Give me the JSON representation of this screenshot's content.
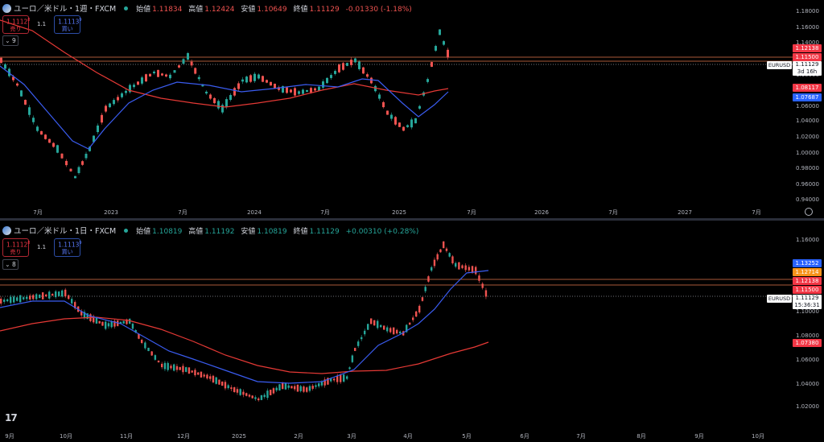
{
  "top_pane": {
    "symbol": "ユーロ／米ドル・1週・FXCM",
    "ohlc": {
      "open_label": "始値",
      "open": "1.11834",
      "high_label": "高値",
      "high": "1.12424",
      "low_label": "安値",
      "low": "1.10649",
      "close_label": "終値",
      "close": "1.11129",
      "change": "-0.01330 (-1.18%)"
    },
    "sell": {
      "price": "1.1112",
      "sup": "8",
      "label": "売り"
    },
    "spread": "1.1",
    "buy": {
      "price": "1.1113",
      "sup": "9",
      "label": "買い"
    },
    "indicator_count": "9",
    "y_ticks": [
      "1.18000",
      "1.16000",
      "1.14000",
      "1.10000",
      "1.04000",
      "1.02000",
      "1.00000",
      "0.98000",
      "0.96000",
      "0.94000"
    ],
    "y_ticks_extra": [
      "1.06000"
    ],
    "x_ticks": [
      "7月",
      "2023",
      "7月",
      "2024",
      "7月",
      "2025",
      "7月",
      "2026",
      "7月",
      "2027",
      "7月"
    ],
    "price_labels": [
      {
        "value": "1.12138",
        "color": "#f23645"
      },
      {
        "value": "1.11500",
        "color": "#f23645"
      },
      {
        "value": "1.08117",
        "color": "#f23645"
      },
      {
        "value": "1.07687",
        "color": "#2962ff"
      }
    ],
    "symbol_tag": "EURUSD",
    "last_price": "1.11129",
    "countdown": "3d 16h"
  },
  "bottom_pane": {
    "symbol": "ユーロ／米ドル・1日・FXCM",
    "ohlc": {
      "open_label": "始値",
      "open": "1.10819",
      "high_label": "高値",
      "high": "1.11192",
      "low_label": "安値",
      "low": "1.10819",
      "close_label": "終値",
      "close": "1.11129",
      "change": "+0.00310 (+0.28%)"
    },
    "sell": {
      "price": "1.1112",
      "sup": "8",
      "label": "売り"
    },
    "spread": "1.1",
    "buy": {
      "price": "1.1113",
      "sup": "9",
      "label": "買い"
    },
    "indicator_count": "8",
    "y_ticks": [
      "1.16000",
      "1.14000",
      "1.10000",
      "1.08000",
      "1.06000",
      "1.04000",
      "1.02000"
    ],
    "x_ticks": [
      "9月",
      "10月",
      "11月",
      "12月",
      "2025",
      "2月",
      "3月",
      "4月",
      "5月",
      "6月",
      "7月",
      "8月",
      "9月",
      "10月"
    ],
    "price_labels": [
      {
        "value": "1.13252",
        "color": "#2962ff"
      },
      {
        "value": "1.12714",
        "color": "#f7931a"
      },
      {
        "value": "1.12138",
        "color": "#f23645"
      },
      {
        "value": "1.11500",
        "color": "#f23645"
      },
      {
        "value": "1.07380",
        "color": "#f23645"
      }
    ],
    "symbol_tag": "EURUSD",
    "last_price": "1.11129",
    "countdown": "15:36:31"
  },
  "colors": {
    "up": "#26a69a",
    "down": "#ef5350",
    "ma_fast": "#3a5cf0",
    "ma_slow": "#e53935",
    "hline": "#e0744a"
  },
  "logo": "17"
}
